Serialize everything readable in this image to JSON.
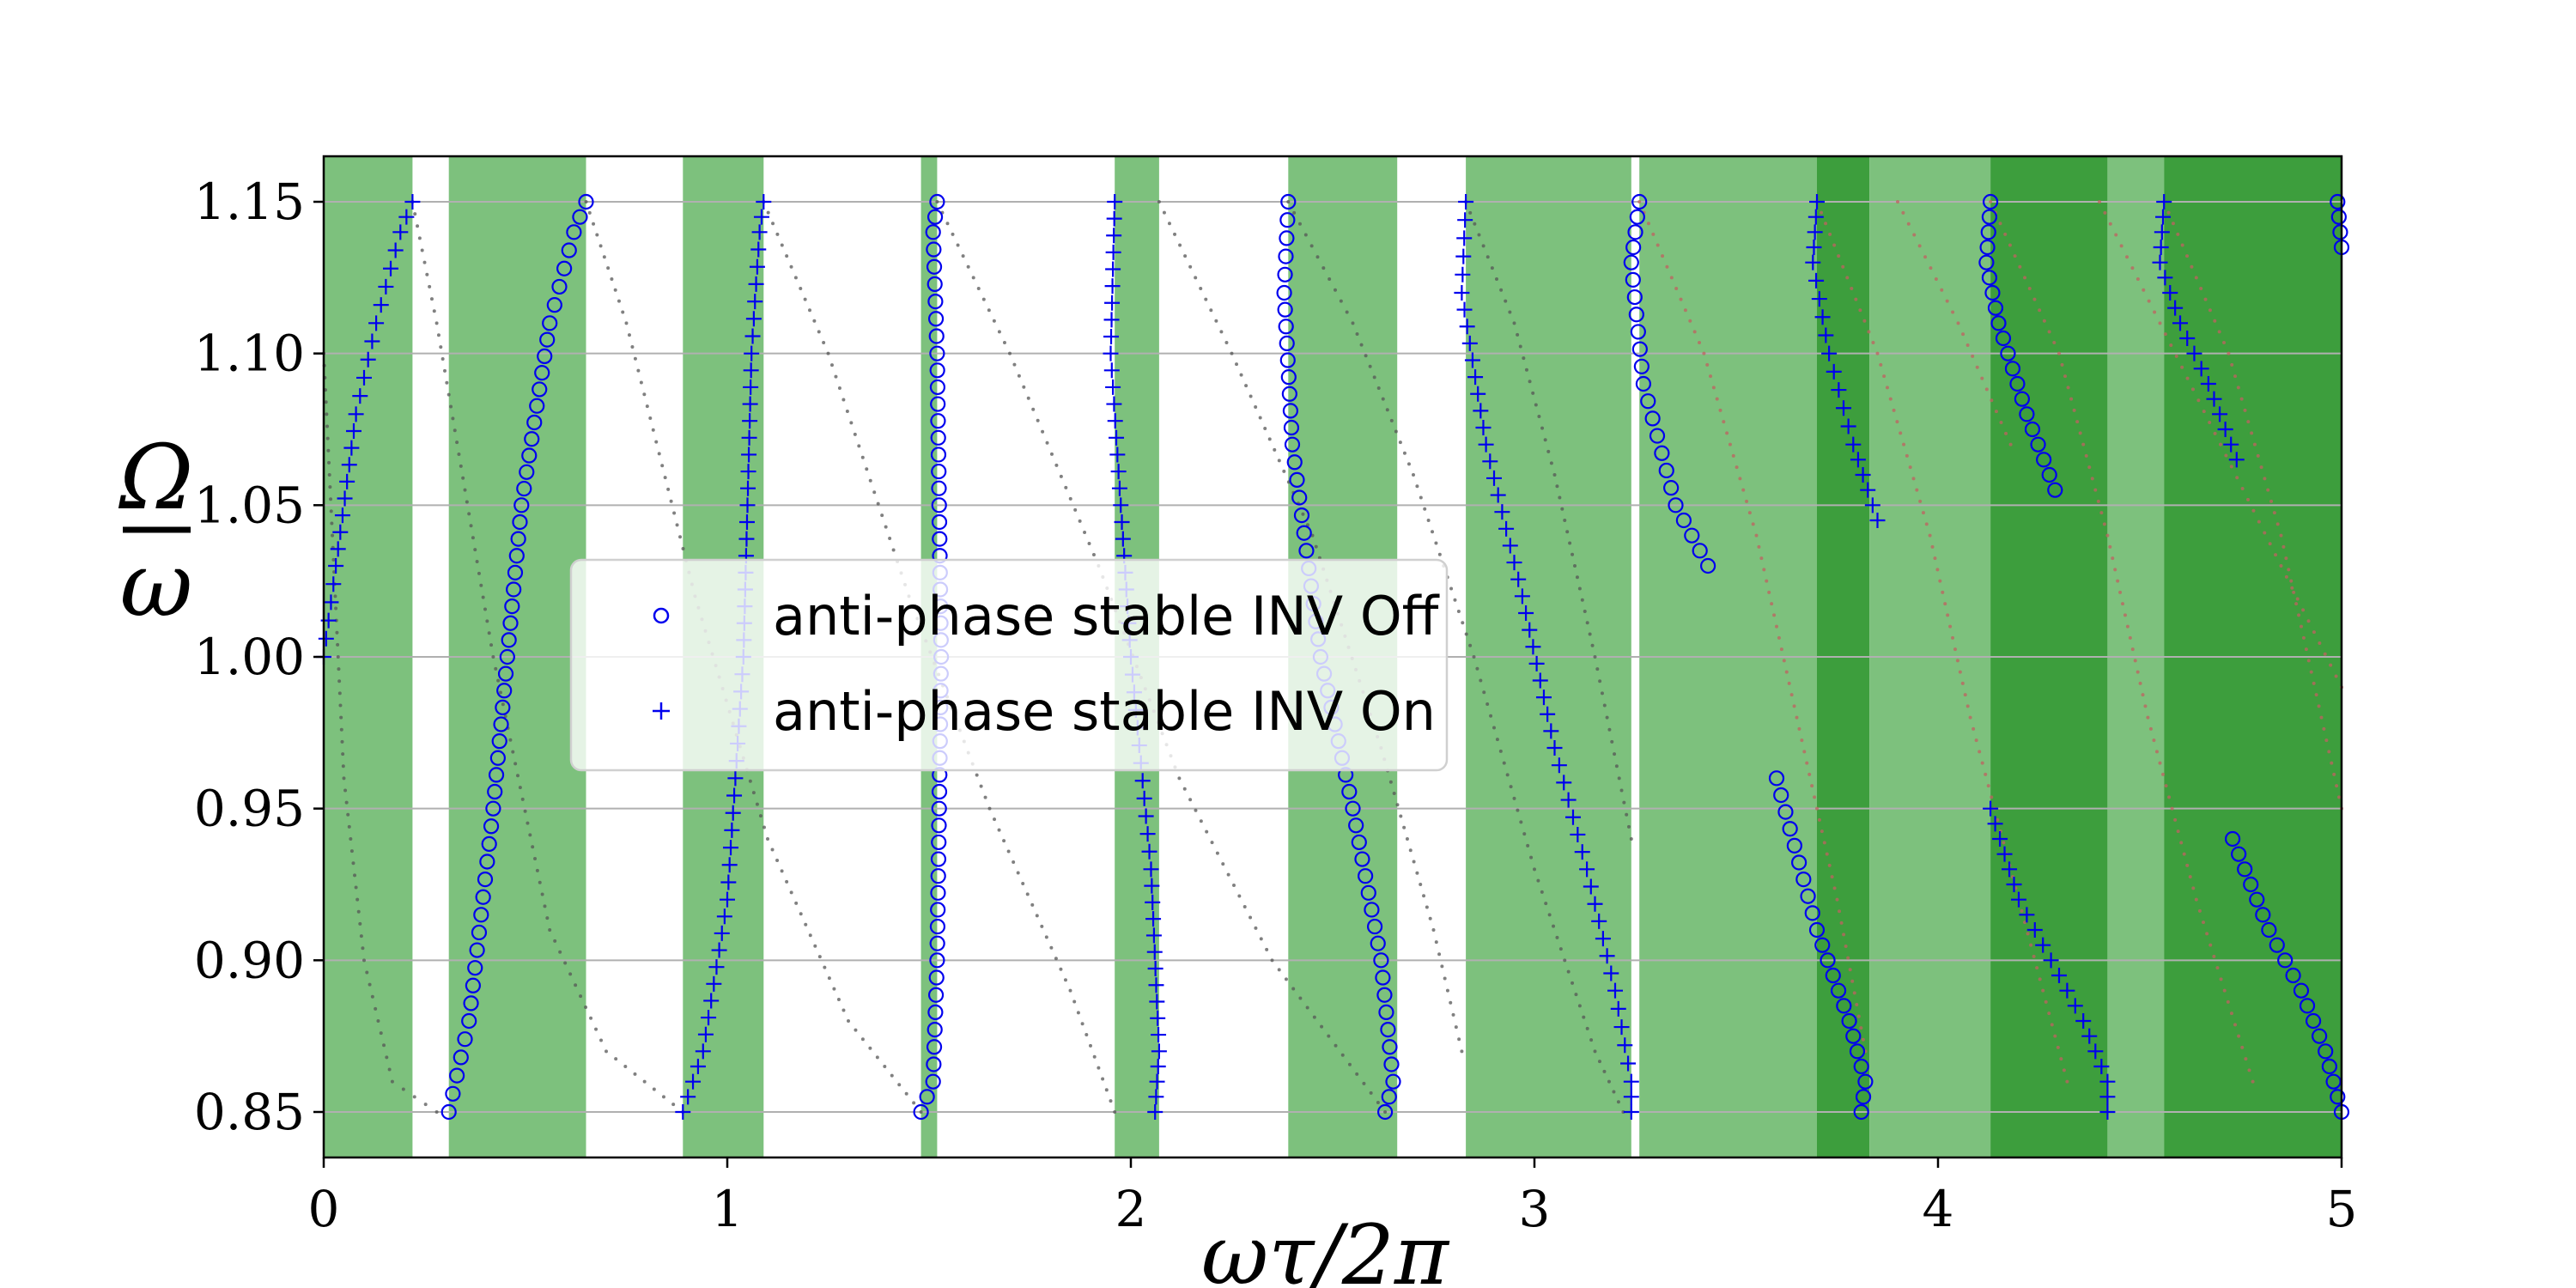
{
  "chart_data": {
    "type": "scatter",
    "xlabel": "ωτ/2π",
    "ylabel_num": "Ω",
    "ylabel_den": "ω",
    "xlim": [
      0,
      5
    ],
    "ylim": [
      0.835,
      1.165
    ],
    "x_ticks": [
      0,
      1,
      2,
      3,
      4,
      5
    ],
    "x_tick_labels": [
      "0",
      "1",
      "2",
      "3",
      "4",
      "5"
    ],
    "y_ticks": [
      0.85,
      0.9,
      0.95,
      1.0,
      1.05,
      1.1,
      1.15
    ],
    "y_tick_labels": [
      "0.85",
      "0.90",
      "0.95",
      "1.00",
      "1.05",
      "1.10",
      "1.15"
    ],
    "grid": "horizontal",
    "legend_position": "center-left",
    "colors": {
      "marker": "#0000ee",
      "band_light": "#7dc17d",
      "band_dark": "#3d9e3d",
      "background_dots_gray": "#555555",
      "background_dots_red": "#c06060",
      "grid": "#b0b0b0"
    },
    "bands": [
      {
        "from": 0.0,
        "to": 0.22,
        "shade": "light"
      },
      {
        "from": 0.31,
        "to": 0.65,
        "shade": "light"
      },
      {
        "from": 0.89,
        "to": 1.09,
        "shade": "light"
      },
      {
        "from": 1.48,
        "to": 1.52,
        "shade": "light"
      },
      {
        "from": 1.96,
        "to": 2.07,
        "shade": "light"
      },
      {
        "from": 2.39,
        "to": 2.66,
        "shade": "light"
      },
      {
        "from": 2.83,
        "to": 3.24,
        "shade": "light"
      },
      {
        "from": 3.26,
        "to": 3.7,
        "shade": "light"
      },
      {
        "from": 3.7,
        "to": 3.83,
        "shade": "dark"
      },
      {
        "from": 3.83,
        "to": 4.13,
        "shade": "light"
      },
      {
        "from": 4.13,
        "to": 4.42,
        "shade": "dark"
      },
      {
        "from": 4.42,
        "to": 4.56,
        "shade": "light"
      },
      {
        "from": 4.56,
        "to": 5.0,
        "shade": "dark"
      }
    ],
    "series": [
      {
        "name": "anti-phase stable INV Off",
        "marker": "circle",
        "segments": [
          [
            [
              0.31,
              0.85
            ],
            [
              0.36,
              0.88
            ],
            [
              0.42,
              0.95
            ],
            [
              0.49,
              1.05
            ],
            [
              0.56,
              1.11
            ],
            [
              0.62,
              1.14
            ],
            [
              0.65,
              1.15
            ]
          ],
          [
            [
              1.48,
              0.85
            ],
            [
              1.51,
              0.86
            ],
            [
              1.52,
              0.9
            ],
            [
              1.53,
              1.0
            ],
            [
              1.52,
              1.1
            ],
            [
              1.51,
              1.14
            ],
            [
              1.52,
              1.15
            ]
          ],
          [
            [
              2.39,
              1.15
            ],
            [
              2.38,
              1.12
            ],
            [
              2.4,
              1.07
            ],
            [
              2.47,
              1.0
            ],
            [
              2.55,
              0.95
            ],
            [
              2.62,
              0.9
            ],
            [
              2.65,
              0.86
            ],
            [
              2.63,
              0.85
            ]
          ],
          [
            [
              3.26,
              1.15
            ],
            [
              3.24,
              1.13
            ],
            [
              3.27,
              1.09
            ],
            [
              3.35,
              1.05
            ],
            [
              3.43,
              1.03
            ]
          ],
          [
            [
              3.6,
              0.96
            ],
            [
              3.7,
              0.91
            ],
            [
              3.78,
              0.88
            ],
            [
              3.82,
              0.86
            ],
            [
              3.81,
              0.85
            ]
          ],
          [
            [
              4.13,
              1.15
            ],
            [
              4.12,
              1.13
            ],
            [
              4.15,
              1.11
            ],
            [
              4.22,
              1.08
            ],
            [
              4.29,
              1.055
            ]
          ],
          [
            [
              4.73,
              0.94
            ],
            [
              4.82,
              0.91
            ],
            [
              4.9,
              0.89
            ],
            [
              4.96,
              0.87
            ],
            [
              5.0,
              0.85
            ]
          ],
          [
            [
              4.99,
              1.15
            ],
            [
              5.0,
              1.135
            ]
          ]
        ]
      },
      {
        "name": "anti-phase stable INV On",
        "marker": "plus",
        "segments": [
          [
            [
              0.0,
              1.0
            ],
            [
              0.03,
              1.03
            ],
            [
              0.08,
              1.08
            ],
            [
              0.13,
              1.11
            ],
            [
              0.19,
              1.14
            ],
            [
              0.22,
              1.15
            ]
          ],
          [
            [
              0.89,
              0.85
            ],
            [
              0.94,
              0.87
            ],
            [
              1.0,
              0.92
            ],
            [
              1.04,
              1.0
            ],
            [
              1.06,
              1.1
            ],
            [
              1.08,
              1.14
            ],
            [
              1.09,
              1.15
            ]
          ],
          [
            [
              1.96,
              1.15
            ],
            [
              1.95,
              1.1
            ],
            [
              2.0,
              1.0
            ],
            [
              2.05,
              0.93
            ],
            [
              2.07,
              0.87
            ],
            [
              2.06,
              0.85
            ]
          ],
          [
            [
              2.83,
              1.15
            ],
            [
              2.82,
              1.12
            ],
            [
              2.88,
              1.07
            ],
            [
              2.97,
              1.02
            ],
            [
              3.05,
              0.97
            ],
            [
              3.13,
              0.93
            ],
            [
              3.2,
              0.89
            ],
            [
              3.24,
              0.86
            ],
            [
              3.24,
              0.85
            ]
          ],
          [
            [
              3.7,
              1.15
            ],
            [
              3.69,
              1.13
            ],
            [
              3.73,
              1.1
            ],
            [
              3.79,
              1.07
            ],
            [
              3.85,
              1.045
            ]
          ],
          [
            [
              4.13,
              0.95
            ],
            [
              4.2,
              0.92
            ],
            [
              4.28,
              0.9
            ],
            [
              4.36,
              0.88
            ],
            [
              4.42,
              0.86
            ],
            [
              4.42,
              0.85
            ]
          ],
          [
            [
              4.56,
              1.15
            ],
            [
              4.55,
              1.13
            ],
            [
              4.6,
              1.11
            ],
            [
              4.67,
              1.09
            ],
            [
              4.74,
              1.065
            ]
          ]
        ]
      }
    ],
    "background_curves": [
      {
        "shade": "gray",
        "points": [
          [
            0.0,
            1.1
          ],
          [
            0.05,
            0.96
          ],
          [
            0.1,
            0.9
          ],
          [
            0.17,
            0.86
          ],
          [
            0.28,
            0.85
          ]
        ]
      },
      {
        "shade": "gray",
        "points": [
          [
            0.22,
            1.15
          ],
          [
            0.28,
            1.11
          ],
          [
            0.42,
            1.0
          ],
          [
            0.56,
            0.91
          ],
          [
            0.7,
            0.87
          ],
          [
            0.89,
            0.85
          ]
        ]
      },
      {
        "shade": "gray",
        "points": [
          [
            0.65,
            1.15
          ],
          [
            0.75,
            1.11
          ],
          [
            0.92,
            1.02
          ],
          [
            1.1,
            0.94
          ],
          [
            1.3,
            0.88
          ],
          [
            1.48,
            0.85
          ]
        ]
      },
      {
        "shade": "gray",
        "points": [
          [
            1.09,
            1.15
          ],
          [
            1.25,
            1.1
          ],
          [
            1.45,
            1.02
          ],
          [
            1.65,
            0.95
          ],
          [
            1.85,
            0.89
          ],
          [
            1.96,
            0.85
          ]
        ]
      },
      {
        "shade": "gray",
        "points": [
          [
            1.52,
            1.15
          ],
          [
            1.7,
            1.1
          ],
          [
            1.92,
            1.03
          ],
          [
            2.12,
            0.96
          ],
          [
            2.35,
            0.9
          ],
          [
            2.63,
            0.85
          ]
        ]
      },
      {
        "shade": "gray",
        "points": [
          [
            2.07,
            1.15
          ],
          [
            2.25,
            1.1
          ],
          [
            2.45,
            1.04
          ],
          [
            2.62,
            0.97
          ],
          [
            2.75,
            0.91
          ],
          [
            2.82,
            0.87
          ]
        ]
      },
      {
        "shade": "gray",
        "points": [
          [
            2.39,
            1.15
          ],
          [
            2.55,
            1.11
          ],
          [
            2.7,
            1.06
          ],
          [
            2.85,
            1.0
          ],
          [
            3.0,
            0.93
          ],
          [
            3.15,
            0.87
          ],
          [
            3.22,
            0.85
          ]
        ]
      },
      {
        "shade": "gray",
        "points": [
          [
            2.83,
            1.15
          ],
          [
            2.95,
            1.11
          ],
          [
            3.05,
            1.06
          ],
          [
            3.15,
            1.0
          ],
          [
            3.24,
            0.94
          ]
        ]
      },
      {
        "shade": "red",
        "points": [
          [
            3.26,
            1.15
          ],
          [
            3.42,
            1.1
          ],
          [
            3.55,
            1.04
          ],
          [
            3.65,
            0.98
          ],
          [
            3.75,
            0.92
          ],
          [
            3.82,
            0.87
          ]
        ]
      },
      {
        "shade": "red",
        "points": [
          [
            3.7,
            1.15
          ],
          [
            3.85,
            1.1
          ],
          [
            3.98,
            1.04
          ],
          [
            4.08,
            0.98
          ],
          [
            4.2,
            0.92
          ],
          [
            4.32,
            0.86
          ]
        ]
      },
      {
        "shade": "red",
        "points": [
          [
            4.13,
            1.15
          ],
          [
            4.3,
            1.1
          ],
          [
            4.42,
            1.04
          ],
          [
            4.52,
            0.98
          ],
          [
            4.64,
            0.92
          ],
          [
            4.78,
            0.86
          ]
        ]
      },
      {
        "shade": "red",
        "points": [
          [
            4.56,
            1.15
          ],
          [
            4.72,
            1.1
          ],
          [
            4.85,
            1.04
          ],
          [
            4.95,
            0.98
          ],
          [
            5.0,
            0.95
          ]
        ]
      },
      {
        "shade": "red",
        "points": [
          [
            3.9,
            1.15
          ],
          [
            4.05,
            1.11
          ],
          [
            4.18,
            1.07
          ]
        ]
      },
      {
        "shade": "red",
        "points": [
          [
            4.4,
            1.15
          ],
          [
            4.55,
            1.11
          ],
          [
            4.7,
            1.07
          ],
          [
            4.85,
            1.03
          ],
          [
            5.0,
            0.99
          ]
        ]
      }
    ]
  }
}
